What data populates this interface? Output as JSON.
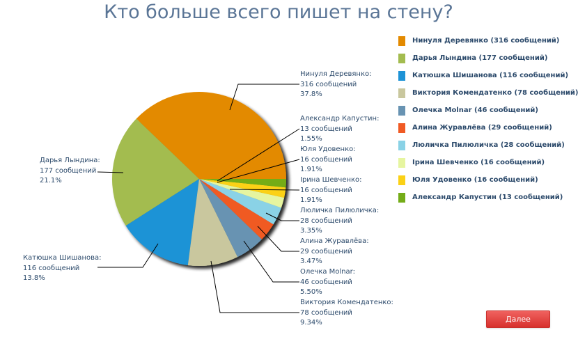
{
  "title": "Кто больше всего пишет на стену?",
  "next_button": "Далее",
  "chart_data": {
    "type": "pie",
    "title": "Кто больше всего пишет на стену?",
    "unit": "сообщений",
    "center": [
      286,
      257
    ],
    "radius": 125,
    "direction": "counter-clockwise from east",
    "legend_position": "right",
    "slices": [
      {
        "name": "Нинуля Деревянко",
        "value": 316,
        "percent": "37.8%",
        "color": "#e38a00",
        "legend": "Нинуля Деревянко (316 сообщений)",
        "label_x": 431,
        "label_y": 100,
        "line": "330,158 342,121 430,121"
      },
      {
        "name": "Дарья Лындина",
        "value": 177,
        "percent": "21.1%",
        "color": "#a3bc4f",
        "legend": "Дарья Лындина (177 сообщений)",
        "label_x": 57,
        "label_y": 224,
        "line": "177,248 140,247"
      },
      {
        "name": "Катюшка Шишанова",
        "value": 116,
        "percent": "13.8%",
        "color": "#1e93d6",
        "legend": "Катюшка Шишанова (116 сообщений)",
        "label_x": 33,
        "label_y": 364,
        "line": "227,350 205,384 140,384"
      },
      {
        "name": "Виктория Комендатенко",
        "value": 78,
        "percent": "9.34%",
        "color": "#c9c79e",
        "legend": "Виктория Комендатенко (78 сообщений)",
        "label_x": 431,
        "label_y": 428,
        "line": "303,375 316,449 430,449"
      },
      {
        "name": "Олечка Molnar",
        "value": 46,
        "percent": "5.50%",
        "color": "#6893b2",
        "legend": "Олечка Molnar (46 сообщений)",
        "label_x": 431,
        "label_y": 384,
        "line": "350,346 392,405 430,405"
      },
      {
        "name": "Алина Журавлёва",
        "value": 29,
        "percent": "3.47%",
        "color": "#f05a24",
        "legend": "Алина Журавлёва (29 сообщений)",
        "label_x": 431,
        "label_y": 340,
        "line": "370,325 404,361 430,361"
      },
      {
        "name": "Люличка Пилюличка",
        "value": 28,
        "percent": "3.35%",
        "color": "#8ad2e6",
        "legend": "Люличка Пилюличка (28 сообщений)",
        "label_x": 431,
        "label_y": 296,
        "line": "382,306 404,317 430,317"
      },
      {
        "name": "Ірина Шевченко",
        "value": 16,
        "percent": "1.91%",
        "color": "#e6f5a0",
        "legend": "Ірина Шевченко (16 сообщений)",
        "label_x": 431,
        "label_y": 252,
        "line": "330,272 430,273"
      },
      {
        "name": "Юля Удовенко",
        "value": 16,
        "percent": "1.91%",
        "color": "#fbd116",
        "legend": "Юля Удовенко (16 сообщений)",
        "label_x": 431,
        "label_y": 208,
        "line": "312,262 430,229"
      },
      {
        "name": "Александр Капустин",
        "value": 13,
        "percent": "1.55%",
        "color": "#74ac18",
        "legend": "Александр Капустин (13 сообщений)",
        "label_x": 431,
        "label_y": 164,
        "line": "312,260 430,185"
      }
    ],
    "labels": [
      {
        "name_line": "Нинуля Деревянко:",
        "count_line": "316 сообщений",
        "pct_line": "37.8%"
      },
      {
        "name_line": "Дарья Лындина:",
        "count_line": "177 сообщений",
        "pct_line": "21.1%"
      },
      {
        "name_line": "Катюшка Шишанова:",
        "count_line": "116 сообщений",
        "pct_line": "13.8%"
      },
      {
        "name_line": "Виктория Комендатенко:",
        "count_line": "78 сообщений",
        "pct_line": "9.34%"
      },
      {
        "name_line": "Олечка Molnar:",
        "count_line": "46 сообщений",
        "pct_line": "5.50%"
      },
      {
        "name_line": "Алина Журавлёва:",
        "count_line": "29 сообщений",
        "pct_line": "3.47%"
      },
      {
        "name_line": "Люличка Пилюличка:",
        "count_line": "28 сообщений",
        "pct_line": "3.35%"
      },
      {
        "name_line": "Ірина Шевченко:",
        "count_line": "16 сообщений",
        "pct_line": "1.91%"
      },
      {
        "name_line": "Юля Удовенко:",
        "count_line": "16 сообщений",
        "pct_line": "1.91%"
      },
      {
        "name_line": "Александр Капустин:",
        "count_line": "13 сообщений",
        "pct_line": "1.55%"
      }
    ]
  }
}
